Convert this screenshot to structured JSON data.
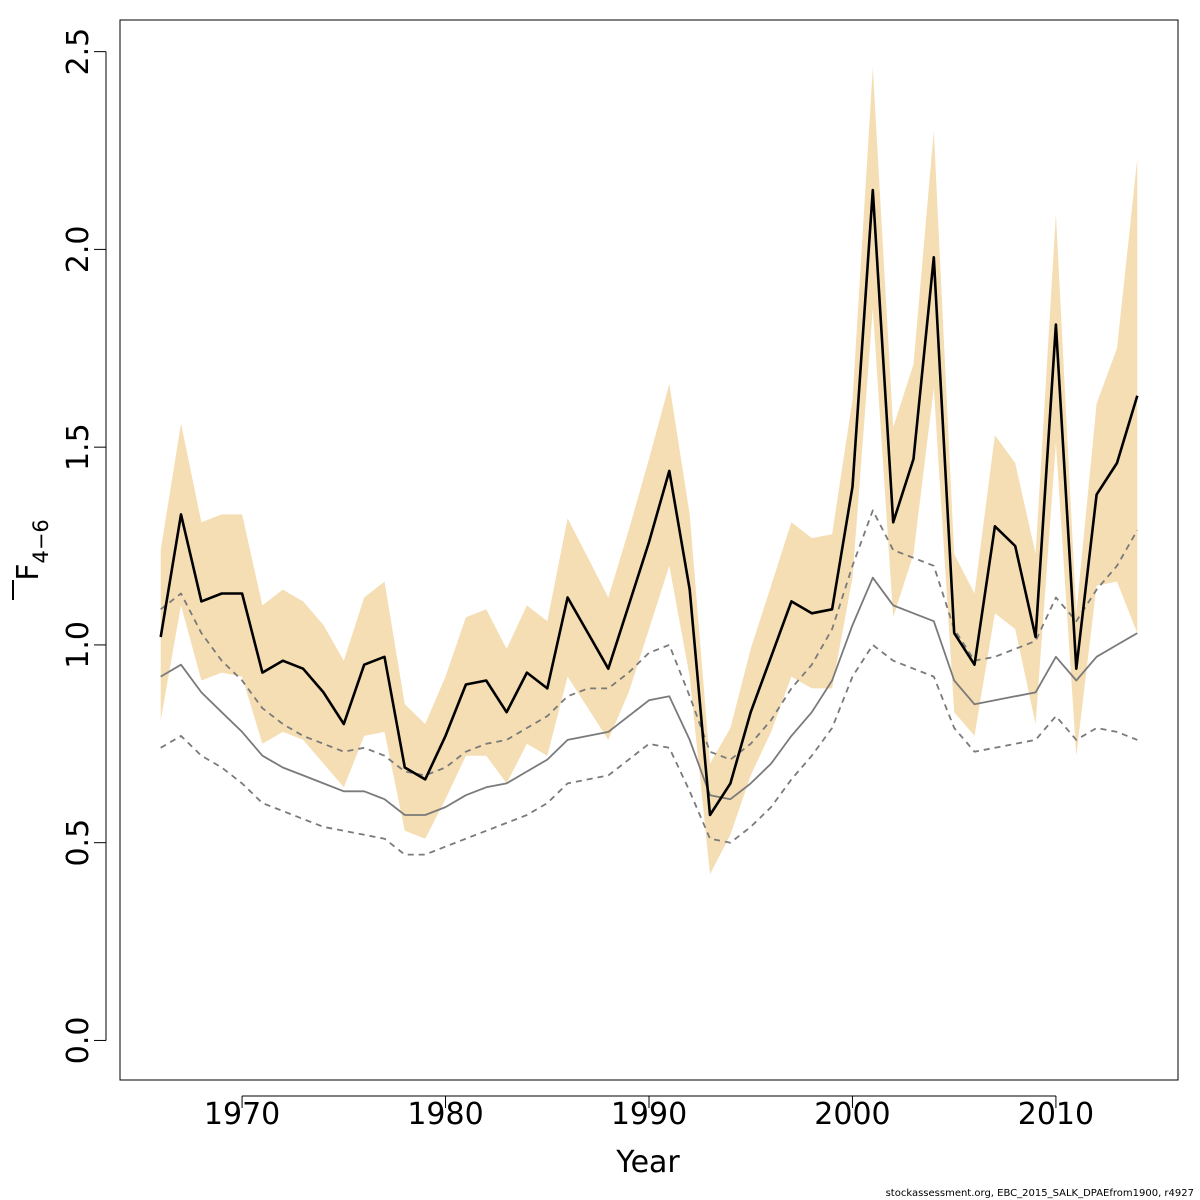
{
  "chart_data": {
    "type": "line",
    "xlabel": "Year",
    "ylabel_main": "F",
    "ylabel_sub": "4−6",
    "xlim": [
      1964,
      2016
    ],
    "ylim": [
      -0.1,
      2.58
    ],
    "xticks": [
      1970,
      1980,
      1990,
      2000,
      2010
    ],
    "yticks": [
      0.0,
      0.5,
      1.0,
      1.5,
      2.0,
      2.5
    ],
    "ytick_labels": [
      "0.0",
      "0.5",
      "1.0",
      "1.5",
      "2.0",
      "2.5"
    ],
    "x": [
      1966,
      1967,
      1968,
      1969,
      1970,
      1971,
      1972,
      1973,
      1974,
      1975,
      1976,
      1977,
      1978,
      1979,
      1980,
      1981,
      1982,
      1983,
      1984,
      1985,
      1986,
      1987,
      1988,
      1989,
      1990,
      1991,
      1992,
      1993,
      1994,
      1995,
      1996,
      1997,
      1998,
      1999,
      2000,
      2001,
      2002,
      2003,
      2004,
      2005,
      2006,
      2007,
      2008,
      2009,
      2010,
      2011,
      2012,
      2013,
      2014
    ],
    "series": [
      {
        "role": "band",
        "color": "#f5deb3",
        "upper": [
          1.24,
          1.56,
          1.31,
          1.33,
          1.33,
          1.1,
          1.14,
          1.11,
          1.05,
          0.96,
          1.12,
          1.16,
          0.85,
          0.8,
          0.92,
          1.07,
          1.09,
          0.99,
          1.1,
          1.06,
          1.32,
          1.22,
          1.12,
          1.29,
          1.47,
          1.66,
          1.33,
          0.7,
          0.79,
          0.99,
          1.15,
          1.31,
          1.27,
          1.28,
          1.62,
          2.46,
          1.55,
          1.71,
          2.3,
          1.23,
          1.13,
          1.53,
          1.46,
          1.23,
          2.09,
          1.08,
          1.61,
          1.75,
          2.23
        ],
        "lower": [
          0.81,
          1.1,
          0.91,
          0.93,
          0.92,
          0.75,
          0.78,
          0.76,
          0.7,
          0.64,
          0.77,
          0.78,
          0.53,
          0.51,
          0.61,
          0.72,
          0.72,
          0.65,
          0.75,
          0.72,
          0.92,
          0.84,
          0.76,
          0.88,
          1.04,
          1.2,
          0.92,
          0.42,
          0.52,
          0.67,
          0.78,
          0.92,
          0.89,
          0.89,
          1.17,
          1.85,
          1.07,
          1.23,
          1.65,
          0.83,
          0.77,
          1.08,
          1.04,
          0.8,
          1.51,
          0.72,
          1.15,
          1.16,
          1.03
        ]
      },
      {
        "role": "main",
        "color": "#000000",
        "values": [
          1.02,
          1.33,
          1.11,
          1.13,
          1.13,
          0.93,
          0.96,
          0.94,
          0.88,
          0.8,
          0.95,
          0.97,
          0.69,
          0.66,
          0.77,
          0.9,
          0.91,
          0.83,
          0.93,
          0.89,
          1.12,
          1.03,
          0.94,
          1.1,
          1.26,
          1.44,
          1.14,
          0.57,
          0.65,
          0.83,
          0.97,
          1.11,
          1.08,
          1.09,
          1.4,
          2.15,
          1.31,
          1.47,
          1.98,
          1.03,
          0.95,
          1.3,
          1.25,
          1.02,
          1.81,
          0.94,
          1.38,
          1.46,
          1.63
        ]
      },
      {
        "role": "reference",
        "color": "#7a7a7a",
        "values": [
          0.92,
          0.95,
          0.88,
          0.83,
          0.78,
          0.72,
          0.69,
          0.67,
          0.65,
          0.63,
          0.63,
          0.61,
          0.57,
          0.57,
          0.59,
          0.62,
          0.64,
          0.65,
          0.68,
          0.71,
          0.76,
          0.77,
          0.78,
          0.82,
          0.86,
          0.87,
          0.76,
          0.62,
          0.61,
          0.65,
          0.7,
          0.77,
          0.83,
          0.91,
          1.05,
          1.17,
          1.1,
          1.08,
          1.06,
          0.91,
          0.85,
          0.86,
          0.87,
          0.88,
          0.97,
          0.91,
          0.97,
          1.0,
          1.03
        ]
      },
      {
        "role": "reference-upper",
        "color": "#7a7a7a",
        "dashed": true,
        "values": [
          1.09,
          1.13,
          1.03,
          0.96,
          0.91,
          0.84,
          0.8,
          0.77,
          0.75,
          0.73,
          0.74,
          0.72,
          0.68,
          0.67,
          0.69,
          0.73,
          0.75,
          0.76,
          0.79,
          0.82,
          0.87,
          0.89,
          0.89,
          0.93,
          0.98,
          1.0,
          0.87,
          0.73,
          0.71,
          0.75,
          0.81,
          0.89,
          0.95,
          1.04,
          1.2,
          1.34,
          1.24,
          1.22,
          1.2,
          1.04,
          0.96,
          0.97,
          0.99,
          1.01,
          1.12,
          1.06,
          1.14,
          1.2,
          1.29
        ]
      },
      {
        "role": "reference-lower",
        "color": "#7a7a7a",
        "dashed": true,
        "values": [
          0.74,
          0.77,
          0.72,
          0.69,
          0.65,
          0.6,
          0.58,
          0.56,
          0.54,
          0.53,
          0.52,
          0.51,
          0.47,
          0.47,
          0.49,
          0.51,
          0.53,
          0.55,
          0.57,
          0.6,
          0.65,
          0.66,
          0.67,
          0.71,
          0.75,
          0.74,
          0.63,
          0.51,
          0.5,
          0.54,
          0.59,
          0.66,
          0.72,
          0.79,
          0.92,
          1.0,
          0.96,
          0.94,
          0.92,
          0.79,
          0.73,
          0.74,
          0.75,
          0.76,
          0.82,
          0.76,
          0.79,
          0.78,
          0.76
        ]
      }
    ],
    "grid": false,
    "legend": "none"
  },
  "credit": "stockassessment.org, EBC_2015_SALK_DPAEfrom1900, r4927"
}
